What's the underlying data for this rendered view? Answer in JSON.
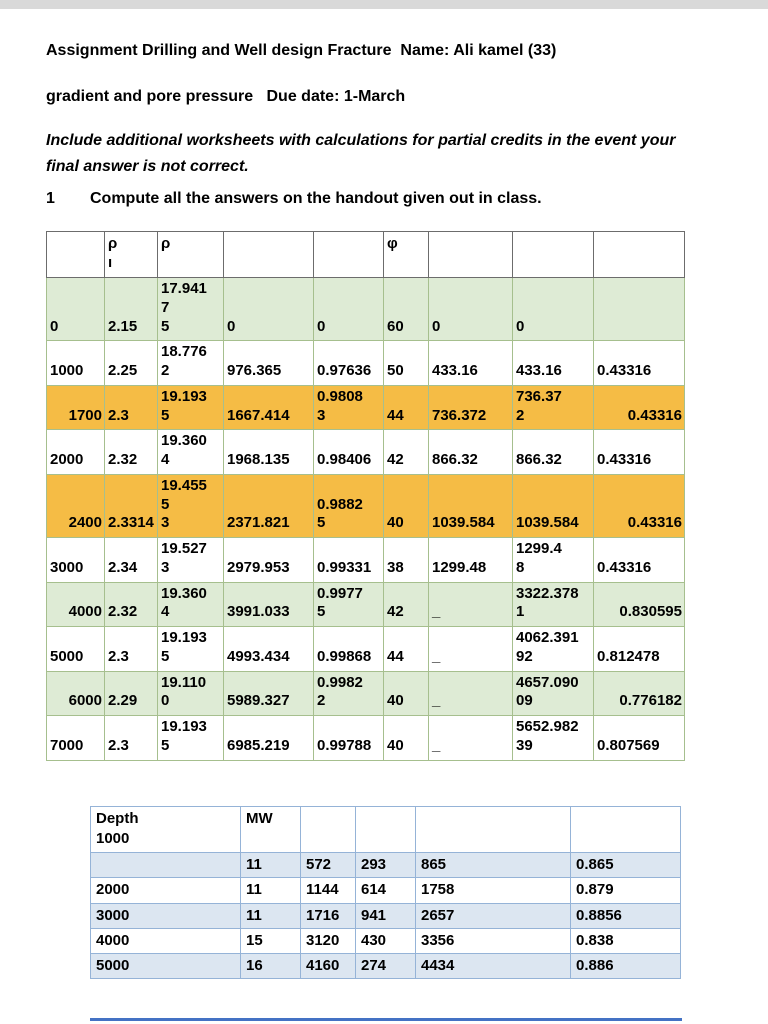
{
  "page": {
    "title_line1": "Assignment Drilling and Well design Fracture  Name: Ali kamel (33)",
    "title_line2": "gradient and pore pressure   Due date: 1-March",
    "note": "Include additional worksheets with calculations for partial credits in the event your final answer is not correct.",
    "item_number": "1",
    "item_text": "Compute all the answers on the handout given out in class."
  },
  "colors": {
    "green_row": "#DEEBD5",
    "orange_row": "#F5BC45",
    "blue_row": "#DCE6F1",
    "table1_border": "#A6BF8E",
    "table2_border": "#95B3D7",
    "rule_blue": "#4472C4",
    "top_strip": "#D9D9D9"
  },
  "table1": {
    "rows": [
      {
        "header": true,
        "cells": [
          "",
          "ρ\nı",
          "ρ",
          "",
          "",
          "φ",
          "",
          "",
          ""
        ]
      },
      {
        "hl": "green",
        "cells": [
          "0",
          "2.15",
          "17.941\n7\n5",
          "0",
          "0",
          "60",
          "0",
          "0",
          ""
        ]
      },
      {
        "cells": [
          "1000",
          "2.25",
          "18.776\n2",
          "976.365",
          "0.97636",
          "50",
          "433.16",
          "433.16",
          "0.43316"
        ]
      },
      {
        "hl": "orange",
        "ra": true,
        "cells": [
          "1700",
          "2.3",
          "19.193\n5",
          "1667.414",
          "0.9808\n3",
          "44",
          "736.372",
          "736.37\n2",
          "0.43316"
        ]
      },
      {
        "cells": [
          "2000",
          "2.32",
          "19.360\n4",
          "1968.135",
          "0.98406",
          "42",
          "866.32",
          "866.32",
          "0.43316"
        ]
      },
      {
        "hl": "orange",
        "ra": true,
        "cells": [
          "2400",
          "2.3314",
          "19.455\n5\n3",
          "2371.821",
          "0.9882\n5",
          "40",
          "1039.584",
          "1039.584",
          "0.43316"
        ]
      },
      {
        "cells": [
          "3000",
          "2.34",
          "19.527\n3",
          "2979.953",
          "0.99331",
          "38",
          "1299.48",
          "1299.4\n8",
          "0.43316"
        ]
      },
      {
        "hl": "green",
        "ra": true,
        "cells": [
          "4000",
          "2.32",
          "19.360\n4",
          "3991.033",
          "0.9977\n5",
          "42",
          "_",
          "3322.378\n1",
          "0.830595"
        ]
      },
      {
        "cells": [
          "5000",
          "2.3",
          "19.193\n5",
          "4993.434",
          "0.99868",
          "44",
          "_",
          "4062.391\n92",
          "0.812478"
        ]
      },
      {
        "hl": "green",
        "ra": true,
        "cells": [
          "6000",
          "2.29",
          "19.110\n0",
          "5989.327",
          "0.9982\n2",
          "40",
          "_",
          "4657.090\n09",
          "0.776182"
        ]
      },
      {
        "cells": [
          "7000",
          "2.3",
          "19.193\n5",
          "6985.219",
          "0.99788",
          "40",
          "_",
          "5652.982\n39",
          "0.807569"
        ]
      }
    ]
  },
  "table2": {
    "rows": [
      {
        "header": true,
        "cells": [
          "Depth\n1000",
          "MW",
          "",
          "",
          "",
          ""
        ]
      },
      {
        "hl": "blue",
        "cells": [
          "",
          "11",
          "572",
          "293",
          "865",
          "0.865"
        ]
      },
      {
        "cells": [
          "2000",
          "11",
          "1144",
          "614",
          "1758",
          "0.879"
        ]
      },
      {
        "hl": "blue",
        "cells": [
          "3000",
          "11",
          "1716",
          "941",
          "2657",
          "0.8856"
        ]
      },
      {
        "cells": [
          "4000",
          "15",
          "3120",
          "430",
          "3356",
          "0.838"
        ]
      },
      {
        "hl": "blue",
        "cells": [
          "5000",
          "16",
          "4160",
          "274",
          "4434",
          "0.886"
        ]
      }
    ]
  }
}
